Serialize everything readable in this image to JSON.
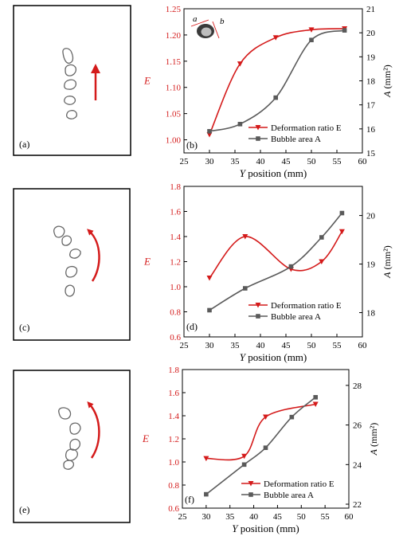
{
  "colors": {
    "red": "#d41a1a",
    "gray": "#5a5a5a",
    "bubble": "#666666"
  },
  "left_panels": [
    {
      "label": "(a)",
      "arrow": "straight-up"
    },
    {
      "label": "(c)",
      "arrow": "curved-up-left"
    },
    {
      "label": "(e)",
      "arrow": "curved-up-left"
    }
  ],
  "chart_data": [
    {
      "type": "line",
      "panel_label": "(b)",
      "xlabel_var": "Y",
      "xlabel_rest": " position (mm)",
      "ylabel_left": "E",
      "ylabel_right_var": "A",
      "ylabel_right_rest": " (mm²)",
      "xlim": [
        25,
        60
      ],
      "xticks": [
        "25",
        "30",
        "35",
        "40",
        "45",
        "50",
        "55",
        "60"
      ],
      "ylim_left": [
        0.975,
        1.25
      ],
      "yticks_left": [
        "1.00",
        "1.05",
        "1.10",
        "1.15",
        "1.20",
        "1.25"
      ],
      "ylim_right": [
        15,
        21
      ],
      "yticks_right": [
        "15",
        "16",
        "17",
        "18",
        "19",
        "20",
        "21"
      ],
      "inset": {
        "label_a": "a",
        "label_b": "b"
      },
      "legend_position": "bottom-right",
      "series": [
        {
          "name": "Deformation ratio E",
          "axis": "left",
          "marker": "triangle-down",
          "x": [
            30,
            36,
            43,
            50,
            56.5
          ],
          "y": [
            1.01,
            1.145,
            1.195,
            1.21,
            1.212
          ]
        },
        {
          "name": "Bubble area A",
          "axis": "right",
          "marker": "square",
          "x": [
            30,
            36,
            43,
            50,
            56.5
          ],
          "y": [
            15.9,
            16.2,
            17.3,
            19.7,
            20.1
          ]
        }
      ]
    },
    {
      "type": "line",
      "panel_label": "(d)",
      "xlabel_var": "Y",
      "xlabel_rest": " position (mm)",
      "ylabel_left": "E",
      "ylabel_right_var": "A",
      "ylabel_right_rest": " (mm²)",
      "xlim": [
        25,
        60
      ],
      "xticks": [
        "25",
        "30",
        "35",
        "40",
        "45",
        "50",
        "55",
        "60"
      ],
      "ylim_left": [
        0.6,
        1.8
      ],
      "yticks_left": [
        "0.6",
        "0.8",
        "1.0",
        "1.2",
        "1.4",
        "1.6",
        "1.8"
      ],
      "ylim_right": [
        17.5,
        20.6
      ],
      "yticks_right": [
        "18",
        "19",
        "20"
      ],
      "legend_position": "bottom-right",
      "series": [
        {
          "name": "Deformation ratio E",
          "axis": "left",
          "marker": "triangle-down",
          "x": [
            30,
            37,
            46,
            52,
            56
          ],
          "y": [
            1.07,
            1.4,
            1.14,
            1.2,
            1.44
          ]
        },
        {
          "name": "Bubble area A",
          "axis": "right",
          "marker": "square",
          "x": [
            30,
            37,
            46,
            52,
            56
          ],
          "y": [
            18.05,
            18.5,
            18.95,
            19.55,
            20.05
          ]
        }
      ]
    },
    {
      "type": "line",
      "panel_label": "(f)",
      "xlabel_var": "Y",
      "xlabel_rest": " position (mm)",
      "ylabel_left": "E",
      "ylabel_right_var": "A",
      "ylabel_right_rest": " (mm²)",
      "xlim": [
        25,
        60
      ],
      "xticks": [
        "25",
        "30",
        "35",
        "40",
        "45",
        "50",
        "55",
        "60"
      ],
      "ylim_left": [
        0.6,
        1.8
      ],
      "yticks_left": [
        "0.6",
        "0.8",
        "1.0",
        "1.2",
        "1.4",
        "1.6",
        "1.8"
      ],
      "ylim_right": [
        21.8,
        28.8
      ],
      "yticks_right": [
        "22",
        "24",
        "26",
        "28"
      ],
      "legend_position": "bottom-right",
      "series": [
        {
          "name": "Deformation ratio E",
          "axis": "left",
          "marker": "triangle-down",
          "x": [
            30,
            38,
            42.5,
            53
          ],
          "y": [
            1.03,
            1.05,
            1.39,
            1.5
          ]
        },
        {
          "name": "Bubble area A",
          "axis": "right",
          "marker": "square",
          "x": [
            30,
            38,
            42.5,
            48,
            53
          ],
          "y": [
            22.5,
            24.0,
            24.85,
            26.4,
            27.4
          ]
        }
      ]
    }
  ]
}
